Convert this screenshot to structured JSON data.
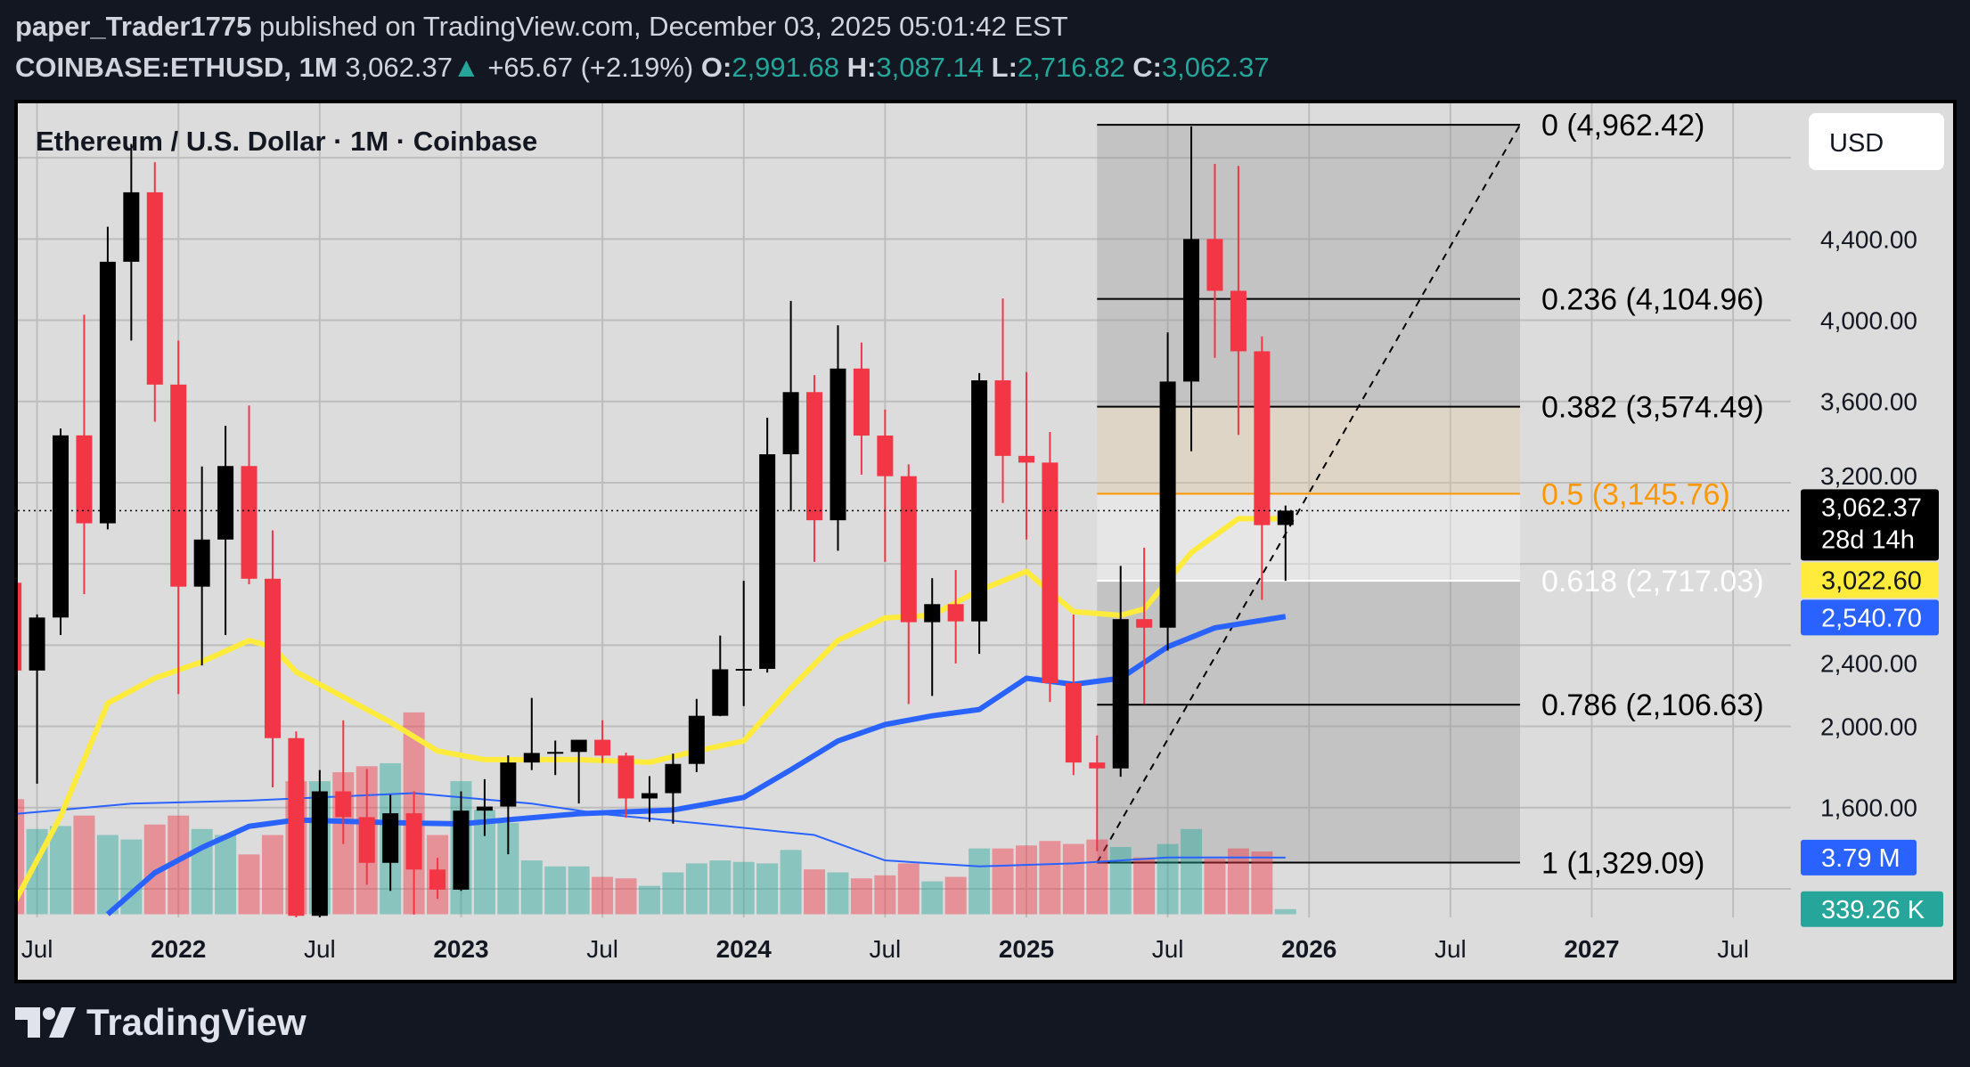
{
  "header": {
    "author": "paper_Trader1775",
    "published": "published on TradingView.com, December 03, 2025 05:01:42 EST",
    "symbol": "COINBASE:ETHUSD, 1M",
    "last": "3,062.37",
    "change": "+65.67 (+2.19%)",
    "o_label": "O:",
    "o": "2,991.68",
    "h_label": "H:",
    "h": "3,087.14",
    "l_label": "L:",
    "l": "2,716.82",
    "c_label": "C:",
    "c": "3,062.37",
    "change_direction_icon": "triangle-up-icon"
  },
  "chart_title": "Ethereum / U.S. Dollar · 1M · Coinbase",
  "currency_button": "USD",
  "footer": {
    "brand": "TradingView"
  },
  "colors": {
    "up_candle": "#000000",
    "down_candle": "#f23645",
    "ma_fast": "#ffeb3b",
    "ma_slow": "#2962ff",
    "vol_up": "#26a69a",
    "vol_down": "#f23645",
    "fib_mid": "#ff9800",
    "header_bg": "#131722",
    "chart_bg": "#dcdcdc"
  },
  "price_axis": {
    "ticks": [
      "4,400.00",
      "4,000.00",
      "3,600.00",
      "3,200.00",
      "2,400.00",
      "2,000.00",
      "1,600.00"
    ],
    "badges": {
      "last_price": "3,062.37",
      "countdown": "28d 14h",
      "ma_fast": "3,022.60",
      "ma_slow": "2,540.70",
      "vol_ma": "3.79 M",
      "volume": "339.26 K"
    }
  },
  "time_axis": {
    "ticks": [
      "Jul",
      "2022",
      "Jul",
      "2023",
      "Jul",
      "2024",
      "Jul",
      "2025",
      "Jul",
      "2026",
      "Jul",
      "2027",
      "Jul"
    ]
  },
  "fib": {
    "anchor_low": {
      "date": "2025-04",
      "price": 1329.09
    },
    "anchor_high": {
      "date": "2026-02",
      "price": 4962.42
    },
    "levels": [
      {
        "label": "0 (4,962.42)",
        "price": 4962.42
      },
      {
        "label": "0.236 (4,104.96)",
        "price": 4104.96
      },
      {
        "label": "0.382 (3,574.49)",
        "price": 3574.49
      },
      {
        "label": "0.5 (3,145.76)",
        "price": 3145.76
      },
      {
        "label": "0.618 (2,717.03)",
        "price": 2717.03
      },
      {
        "label": "0.786 (2,106.63)",
        "price": 2106.63
      },
      {
        "label": "1 (1,329.09)",
        "price": 1329.09
      }
    ]
  },
  "chart_data": {
    "type": "candlestick",
    "title": "Ethereum / U.S. Dollar · 1M · Coinbase",
    "ylim": [
      1200,
      5100
    ],
    "grid": true,
    "candles": [
      [
        "2021-06",
        2707,
        2891,
        1700,
        2275
      ],
      [
        "2021-07",
        2275,
        2551,
        1718,
        2536
      ],
      [
        "2021-08",
        2536,
        3467,
        2450,
        3433
      ],
      [
        "2021-09",
        3433,
        4027,
        2651,
        3000
      ],
      [
        "2021-10",
        3000,
        4460,
        2970,
        4288
      ],
      [
        "2021-11",
        4288,
        4868,
        3900,
        4630
      ],
      [
        "2021-12",
        4630,
        4778,
        3500,
        3683
      ],
      [
        "2022-01",
        3683,
        3900,
        2159,
        2688
      ],
      [
        "2022-02",
        2688,
        3280,
        2300,
        2920
      ],
      [
        "2022-03",
        2920,
        3480,
        2450,
        3282
      ],
      [
        "2022-04",
        3282,
        3580,
        2700,
        2727
      ],
      [
        "2022-05",
        2727,
        2965,
        1700,
        1942
      ],
      [
        "2022-06",
        1942,
        1975,
        880,
        1067
      ],
      [
        "2022-07",
        1067,
        1785,
        1000,
        1680
      ],
      [
        "2022-08",
        1680,
        2030,
        1420,
        1553
      ],
      [
        "2022-09",
        1553,
        1790,
        1220,
        1328
      ],
      [
        "2022-10",
        1328,
        1663,
        1190,
        1572
      ],
      [
        "2022-11",
        1572,
        1680,
        1073,
        1295
      ],
      [
        "2022-12",
        1295,
        1353,
        1150,
        1196
      ],
      [
        "2023-01",
        1196,
        1680,
        1190,
        1585
      ],
      [
        "2023-02",
        1585,
        1740,
        1460,
        1605
      ],
      [
        "2023-03",
        1605,
        1857,
        1370,
        1822
      ],
      [
        "2023-04",
        1822,
        2140,
        1785,
        1869
      ],
      [
        "2023-05",
        1869,
        1930,
        1760,
        1874
      ],
      [
        "2023-06",
        1874,
        1930,
        1620,
        1934
      ],
      [
        "2023-07",
        1934,
        2030,
        1820,
        1856
      ],
      [
        "2023-08",
        1856,
        1870,
        1550,
        1645
      ],
      [
        "2023-09",
        1645,
        1755,
        1530,
        1671
      ],
      [
        "2023-10",
        1671,
        1866,
        1521,
        1815
      ],
      [
        "2023-11",
        1815,
        2135,
        1775,
        2052
      ],
      [
        "2023-12",
        2052,
        2447,
        2050,
        2281
      ],
      [
        "2024-01",
        2281,
        2717,
        2100,
        2283
      ],
      [
        "2024-02",
        2283,
        3520,
        2265,
        3340
      ],
      [
        "2024-03",
        3340,
        4095,
        3060,
        3646
      ],
      [
        "2024-04",
        3646,
        3730,
        2810,
        3015
      ],
      [
        "2024-05",
        3015,
        3975,
        2865,
        3762
      ],
      [
        "2024-06",
        3762,
        3890,
        3240,
        3432
      ],
      [
        "2024-07",
        3432,
        3560,
        2810,
        3232
      ],
      [
        "2024-08",
        3232,
        3290,
        2110,
        2513
      ],
      [
        "2024-09",
        2513,
        2730,
        2150,
        2602
      ],
      [
        "2024-10",
        2602,
        2770,
        2310,
        2517
      ],
      [
        "2024-11",
        2517,
        3740,
        2357,
        3704
      ],
      [
        "2024-12",
        3704,
        4107,
        3100,
        3332
      ],
      [
        "2025-01",
        3332,
        3745,
        2920,
        3299
      ],
      [
        "2025-02",
        3299,
        3450,
        2120,
        2213
      ],
      [
        "2025-03",
        2213,
        2550,
        1760,
        1822
      ],
      [
        "2025-04",
        1822,
        1955,
        1385,
        1793
      ],
      [
        "2025-05",
        1793,
        2790,
        1752,
        2528
      ],
      [
        "2025-06",
        2528,
        2880,
        2110,
        2486
      ],
      [
        "2025-07",
        2486,
        3940,
        2373,
        3698
      ],
      [
        "2025-08",
        3698,
        4955,
        3355,
        4400
      ],
      [
        "2025-09",
        4400,
        4770,
        3815,
        4145
      ],
      [
        "2025-10",
        4145,
        4760,
        3435,
        3847
      ],
      [
        "2025-11",
        3847,
        3920,
        2623,
        2991
      ],
      [
        "2025-12",
        2991.68,
        3087.14,
        2716.82,
        3062.37
      ]
    ],
    "volume_millions": [
      7.7,
      5.7,
      5.9,
      6.6,
      5.3,
      5.0,
      6.0,
      6.6,
      5.7,
      5.3,
      4.0,
      5.3,
      8.9,
      8.9,
      9.5,
      9.9,
      10.1,
      13.5,
      5.3,
      8.9,
      7.0,
      6.1,
      3.6,
      3.2,
      3.2,
      2.5,
      2.4,
      1.9,
      2.8,
      3.4,
      3.6,
      3.5,
      3.4,
      4.3,
      3.0,
      2.8,
      2.4,
      2.6,
      3.4,
      2.2,
      2.5,
      4.4,
      4.4,
      4.6,
      4.9,
      4.7,
      5.0,
      4.5,
      3.8,
      4.7,
      5.7,
      3.7,
      4.4,
      4.2,
      0.34
    ],
    "volume_ma_millions": [
      [
        "2021-06",
        6.7
      ],
      [
        "2021-11",
        7.4
      ],
      [
        "2022-04",
        7.6
      ],
      [
        "2022-11",
        8.1
      ],
      [
        "2023-04",
        7.4
      ],
      [
        "2023-07",
        6.7
      ],
      [
        "2023-11",
        6.1
      ],
      [
        "2024-04",
        5.3
      ],
      [
        "2024-07",
        3.6
      ],
      [
        "2024-11",
        3.2
      ],
      [
        "2025-03",
        3.4
      ],
      [
        "2025-07",
        3.8
      ],
      [
        "2025-12",
        3.79
      ]
    ],
    "ma_fast": [
      [
        "2021-06",
        1124
      ],
      [
        "2021-08",
        1557
      ],
      [
        "2021-10",
        2114
      ],
      [
        "2021-12",
        2237
      ],
      [
        "2022-02",
        2318
      ],
      [
        "2022-04",
        2423
      ],
      [
        "2022-05",
        2392
      ],
      [
        "2022-06",
        2268
      ],
      [
        "2022-08",
        2145
      ],
      [
        "2022-10",
        2021
      ],
      [
        "2022-12",
        1879
      ],
      [
        "2023-02",
        1836
      ],
      [
        "2023-06",
        1836
      ],
      [
        "2023-09",
        1823
      ],
      [
        "2023-11",
        1879
      ],
      [
        "2024-01",
        1928
      ],
      [
        "2024-03",
        2188
      ],
      [
        "2024-05",
        2423
      ],
      [
        "2024-07",
        2534
      ],
      [
        "2024-09",
        2547
      ],
      [
        "2024-11",
        2670
      ],
      [
        "2025-01",
        2763
      ],
      [
        "2025-03",
        2565
      ],
      [
        "2025-05",
        2547
      ],
      [
        "2025-06",
        2578
      ],
      [
        "2025-08",
        2856
      ],
      [
        "2025-10",
        3023
      ],
      [
        "2025-12",
        3022.6
      ]
    ],
    "ma_slow": [
      [
        "2021-10",
        1075
      ],
      [
        "2021-12",
        1279
      ],
      [
        "2022-02",
        1403
      ],
      [
        "2022-04",
        1508
      ],
      [
        "2022-06",
        1539
      ],
      [
        "2022-10",
        1526
      ],
      [
        "2023-01",
        1520
      ],
      [
        "2023-06",
        1570
      ],
      [
        "2023-10",
        1588
      ],
      [
        "2024-01",
        1650
      ],
      [
        "2024-03",
        1786
      ],
      [
        "2024-05",
        1928
      ],
      [
        "2024-07",
        2009
      ],
      [
        "2024-09",
        2052
      ],
      [
        "2024-11",
        2083
      ],
      [
        "2025-01",
        2237
      ],
      [
        "2025-03",
        2207
      ],
      [
        "2025-05",
        2237
      ],
      [
        "2025-07",
        2392
      ],
      [
        "2025-09",
        2485
      ],
      [
        "2025-12",
        2540.7
      ]
    ]
  }
}
